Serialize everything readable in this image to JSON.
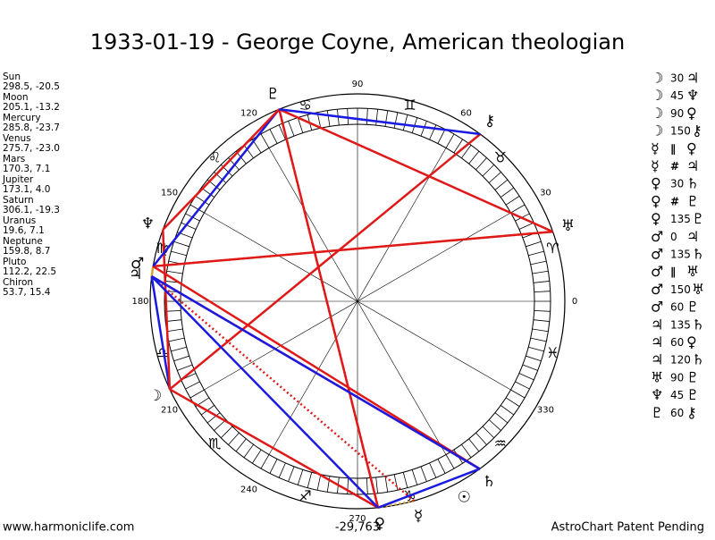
{
  "title": "1933-01-19 - George Coyne, American theologian",
  "planets": [
    {
      "name": "Sun",
      "glyph": "☉",
      "position": "298.5, -20.5"
    },
    {
      "name": "Moon",
      "glyph": "☽",
      "position": "205.1, -13.2"
    },
    {
      "name": "Mercury",
      "glyph": "☿",
      "position": "285.8, -23.7"
    },
    {
      "name": "Venus",
      "glyph": "♀",
      "position": "275.7, -23.0"
    },
    {
      "name": "Mars",
      "glyph": "♂",
      "position": "170.3, 7.1"
    },
    {
      "name": "Jupiter",
      "glyph": "♃",
      "position": "173.1, 4.0"
    },
    {
      "name": "Saturn",
      "glyph": "♄",
      "position": "306.1, -19.3"
    },
    {
      "name": "Uranus",
      "glyph": "♅",
      "position": "19.6, 7.1"
    },
    {
      "name": "Neptune",
      "glyph": "♆",
      "position": "159.8, 8.7"
    },
    {
      "name": "Pluto",
      "glyph": "♇",
      "position": "112.2, 22.5"
    },
    {
      "name": "Chiron",
      "glyph": "⚷",
      "position": "53.7, 15.4"
    }
  ],
  "aspects": [
    {
      "from": "☽",
      "angle": 30,
      "to": "♃"
    },
    {
      "from": "☽",
      "angle": 45,
      "to": "♆"
    },
    {
      "from": "☽",
      "angle": 90,
      "to": "♀"
    },
    {
      "from": "☽",
      "angle": 150,
      "to": "⚷"
    },
    {
      "from": "☿",
      "angle": "∥",
      "to": "♀"
    },
    {
      "from": "☿",
      "angle": "#",
      "to": "♃"
    },
    {
      "from": "♀",
      "angle": 30,
      "to": "♄"
    },
    {
      "from": "♀",
      "angle": "#",
      "to": "♇"
    },
    {
      "from": "♀",
      "angle": 135,
      "to": "♇"
    },
    {
      "from": "♂",
      "angle": 0,
      "to": "♃"
    },
    {
      "from": "♂",
      "angle": 135,
      "to": "♄"
    },
    {
      "from": "♂",
      "angle": "∥",
      "to": "♅"
    },
    {
      "from": "♂",
      "angle": 150,
      "to": "♅"
    },
    {
      "from": "♂",
      "angle": 60,
      "to": "♇"
    },
    {
      "from": "♃",
      "angle": 135,
      "to": "♄"
    },
    {
      "from": "♃",
      "angle": 60,
      "to": "♀"
    },
    {
      "from": "♃",
      "angle": 120,
      "to": "♄"
    },
    {
      "from": "♅",
      "angle": 90,
      "to": "♇"
    },
    {
      "from": "♆",
      "angle": 45,
      "to": "♇"
    },
    {
      "from": "♇",
      "angle": 60,
      "to": "⚷"
    }
  ],
  "signs": [
    "♈",
    "♉",
    "♊",
    "♋",
    "♌",
    "♍",
    "♎",
    "♏",
    "♐",
    "♑",
    "♒",
    "♓"
  ],
  "degree_labels": [
    0,
    30,
    60,
    90,
    120,
    150,
    180,
    210,
    240,
    270,
    330
  ],
  "center_value": "-29,763",
  "footer": {
    "left": "www.harmoniclife.com",
    "right": "AstroChart Patent Pending"
  }
}
